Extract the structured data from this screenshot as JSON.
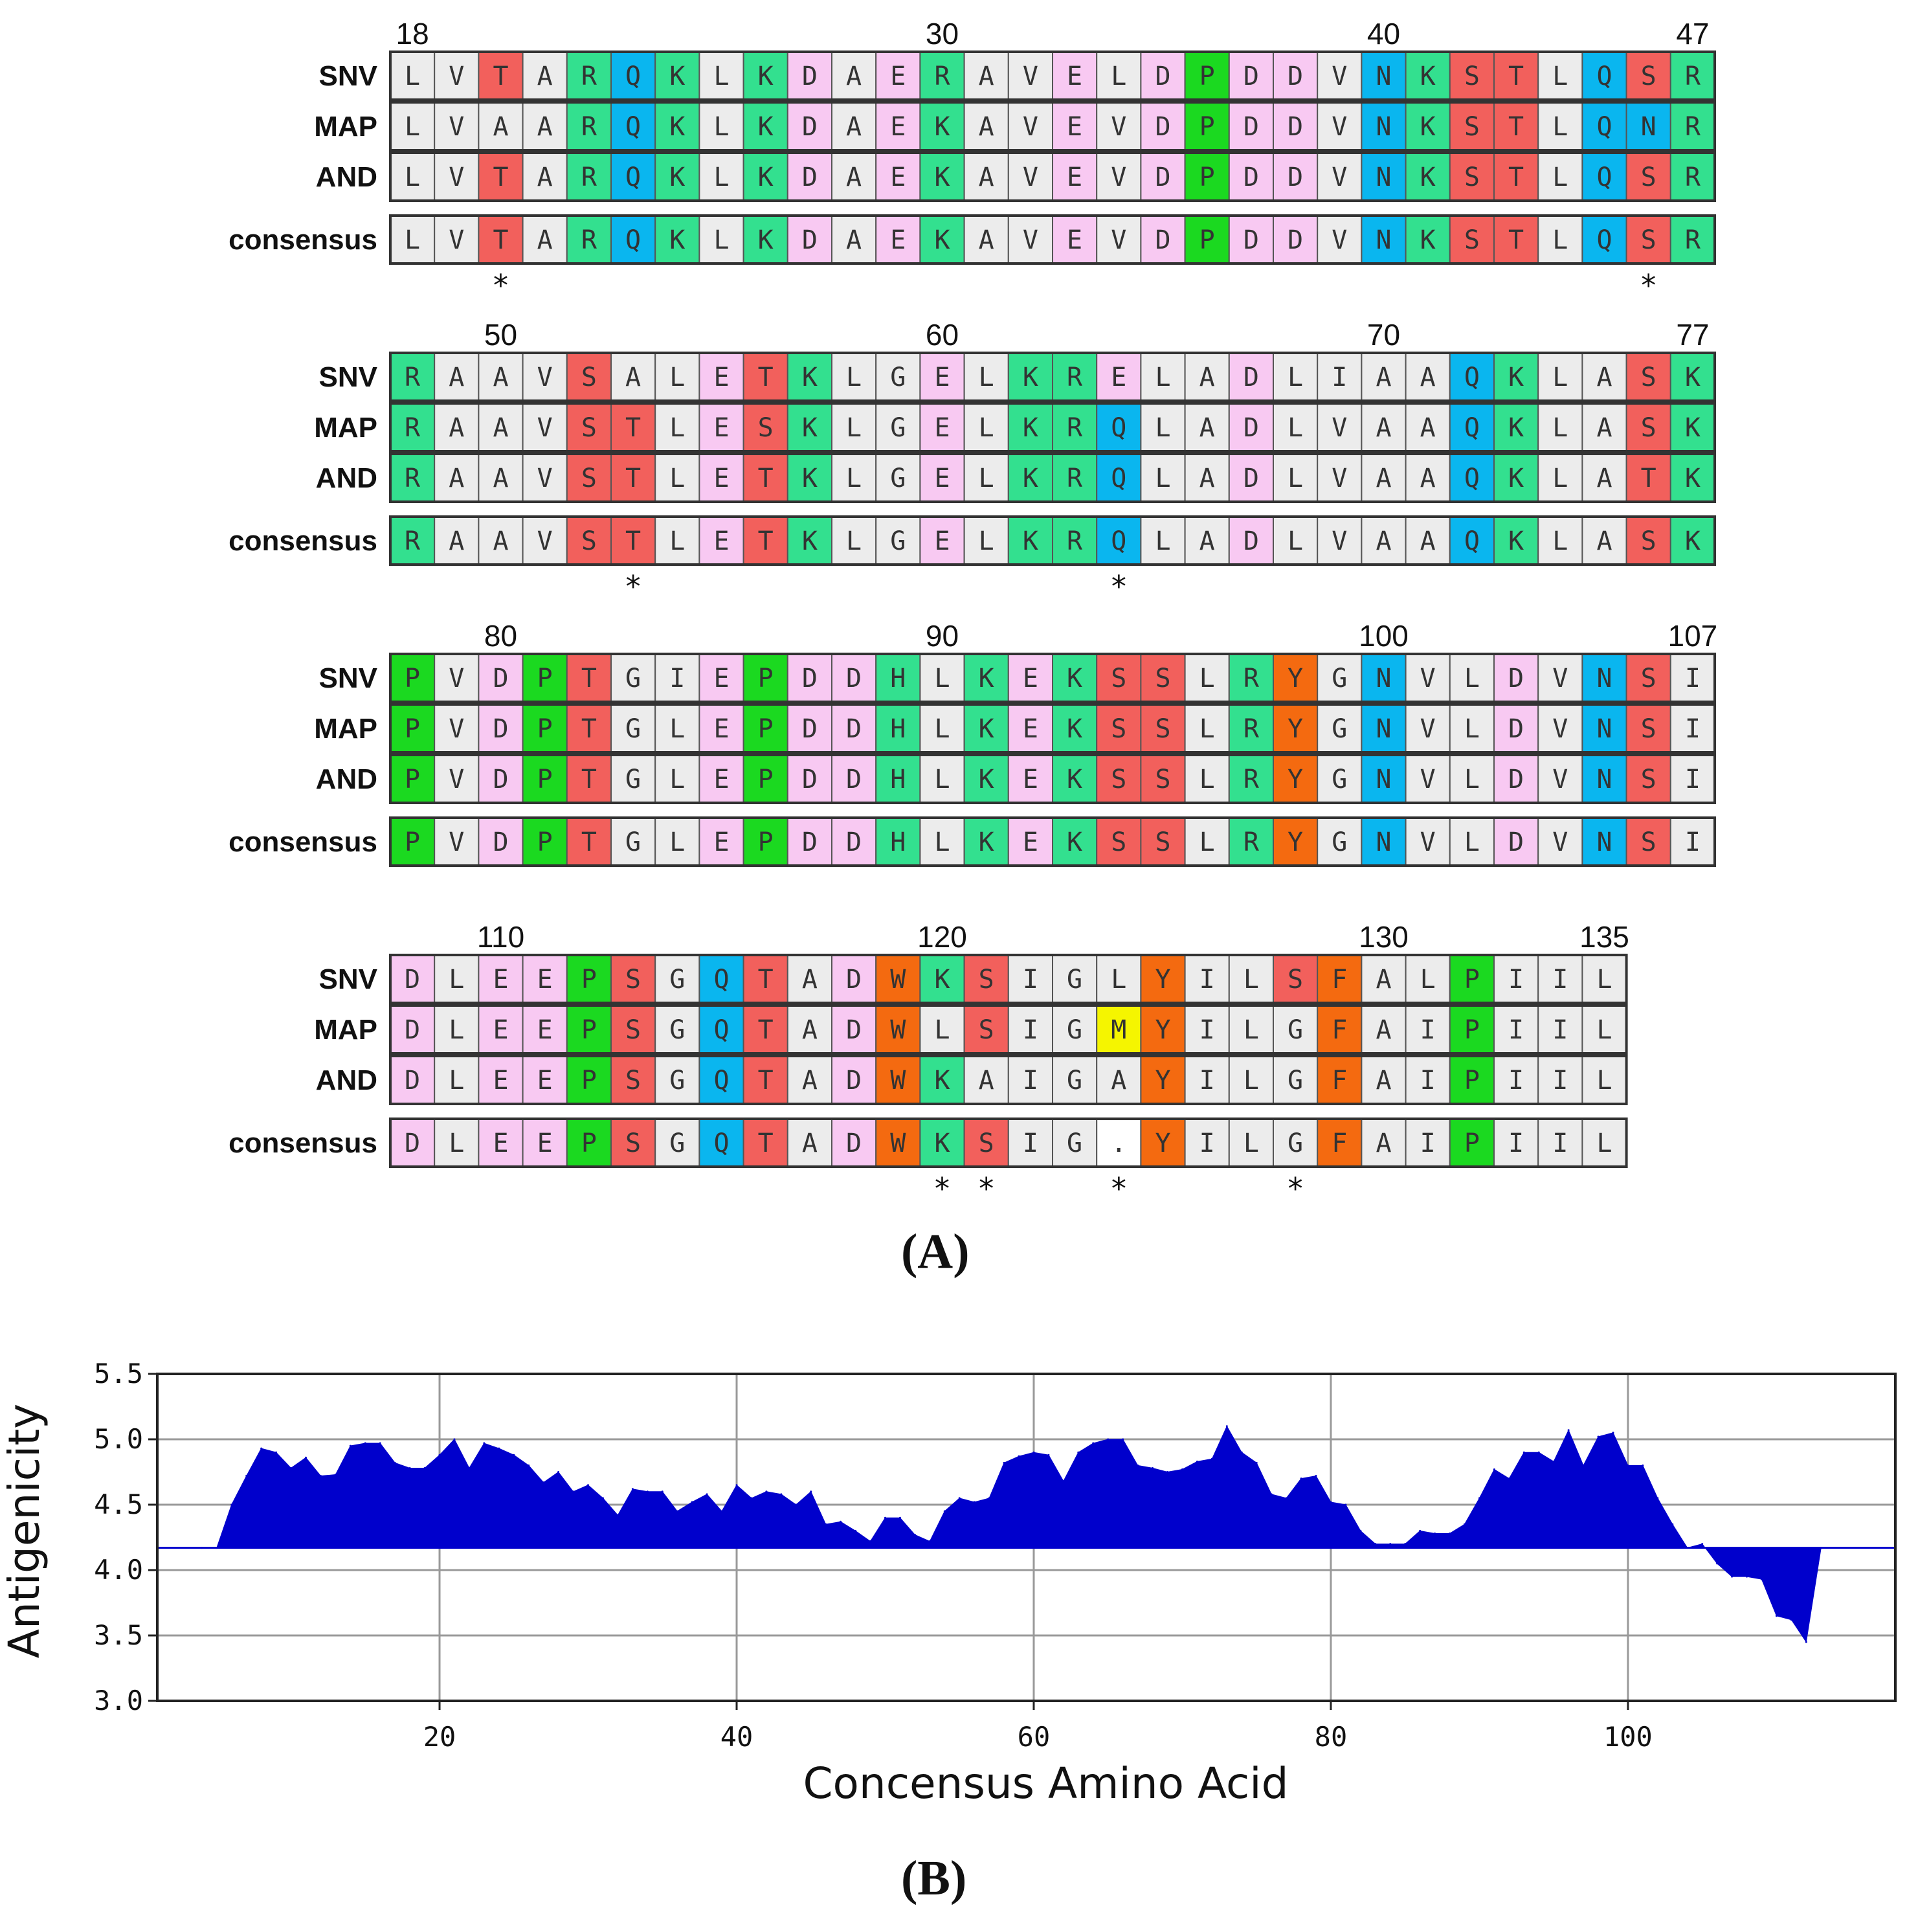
{
  "panel_a": {
    "label": "(A)",
    "rows_labels": [
      "SNV",
      "MAP",
      "AND",
      "consensus"
    ],
    "colors": {
      "gray": "#ececec",
      "pink": "#f8c9f2",
      "teal": "#33e08f",
      "red": "#f2605c",
      "blue": "#0ab6ef",
      "green": "#1bd920",
      "orange": "#f46a10",
      "yellow": "#f5f500",
      "white": "#ffffff",
      "border": "#333333"
    },
    "blocks": [
      {
        "numbers": [
          {
            "col": 0,
            "label": "18"
          },
          {
            "col": 12,
            "label": "30"
          },
          {
            "col": 22,
            "label": "40"
          },
          {
            "col": 29,
            "label": "47"
          }
        ],
        "SNV": "LVTARQKLKDAERAVELDPDDVNKSTLQSR",
        "MAP": "LVAARQKLKDAEKAVEVDPDDVNKSTLQNR",
        "AND": "LVTARQKLKDAEKAVEVDPDDVNKSTLQSR",
        "consensus": "LVTARQKLKDAEKAVEVDPDDVNKSTLQSR",
        "stars": [
          2,
          28
        ]
      },
      {
        "numbers": [
          {
            "col": 2,
            "label": "50"
          },
          {
            "col": 12,
            "label": "60"
          },
          {
            "col": 22,
            "label": "70"
          },
          {
            "col": 29,
            "label": "77"
          }
        ],
        "SNV": "RAAVSALETKLGELKRELADLIAAQKLASK",
        "MAP": "RAAVSTLESKLGELKRQLADLVAAQKLASK",
        "AND": "RAAVSTLETKLGELKRQLADLVAAQKLATK",
        "consensus": "RAAVSTLETKLGELKRQLADLVAAQKLASK",
        "stars": [
          5,
          16
        ]
      },
      {
        "numbers": [
          {
            "col": 2,
            "label": "80"
          },
          {
            "col": 12,
            "label": "90"
          },
          {
            "col": 22,
            "label": "100"
          },
          {
            "col": 29,
            "label": "107"
          }
        ],
        "SNV": "PVDPTGIEPDDHLKEKSSLRYGNVLDVNSI",
        "MAP": "PVDPTGLEPDDHLKEKSSLRYGNVLDVNSI",
        "AND": "PVDPTGLEPDDHLKEKSSLRYGNVLDVNSI",
        "consensus": "PVDPTGLEPDDHLKEKSSLRYGNVLDVNSI",
        "stars": []
      },
      {
        "numbers": [
          {
            "col": 2,
            "label": "110"
          },
          {
            "col": 12,
            "label": "120"
          },
          {
            "col": 22,
            "label": "130"
          },
          {
            "col": 27,
            "label": "135"
          }
        ],
        "SNV": "DLEEPSGQTADWKSIGLYILSFALPIIL",
        "MAP": "DLEEPSGQTADWLSIGMYILGFAIPIIL",
        "AND": "DLEEPSGQTADWKAIGAYILGFAIPIIL",
        "consensus": "DLEEPSGQTADWKSIG.YILGFAIPIIL",
        "stars": [
          12,
          13,
          16,
          20
        ]
      }
    ],
    "star_char": "*"
  },
  "panel_b": {
    "label": "(B)"
  },
  "chart_data": {
    "type": "area",
    "title": "",
    "xlabel": "Concensus Amino Acid",
    "ylabel": "Antigenicity",
    "xlim": [
      1,
      118
    ],
    "ylim": [
      3.0,
      5.5
    ],
    "baseline": 4.17,
    "xticks": [
      20,
      40,
      60,
      80,
      100
    ],
    "yticks": [
      "3.0",
      "3.5",
      "4.0",
      "4.5",
      "5.0",
      "5.5"
    ],
    "grid": true,
    "fill_color": "#0000cc",
    "x": [
      1,
      4,
      5,
      6,
      7,
      8,
      9,
      10,
      11,
      12,
      13,
      14,
      15,
      16,
      17,
      18,
      19,
      20,
      21,
      22,
      23,
      24,
      25,
      26,
      27,
      28,
      29,
      30,
      31,
      32,
      33,
      34,
      35,
      36,
      37,
      38,
      39,
      40,
      41,
      42,
      43,
      44,
      45,
      46,
      47,
      48,
      49,
      50,
      51,
      52,
      53,
      54,
      55,
      56,
      57,
      58,
      59,
      60,
      61,
      62,
      63,
      64,
      65,
      66,
      67,
      68,
      69,
      70,
      71,
      72,
      73,
      74,
      75,
      76,
      77,
      78,
      79,
      80,
      81,
      82,
      83,
      84,
      85,
      86,
      87,
      88,
      89,
      90,
      91,
      92,
      93,
      94,
      95,
      96,
      97,
      98,
      99,
      100,
      101,
      102,
      103,
      104,
      105,
      106,
      107,
      108,
      109,
      110,
      111,
      112,
      113,
      118
    ],
    "y": [
      4.17,
      4.17,
      4.17,
      4.5,
      4.72,
      4.93,
      4.9,
      4.78,
      4.86,
      4.72,
      4.73,
      4.95,
      4.97,
      4.97,
      4.82,
      4.78,
      4.78,
      4.88,
      5.0,
      4.78,
      4.97,
      4.93,
      4.88,
      4.8,
      4.67,
      4.75,
      4.6,
      4.65,
      4.55,
      4.42,
      4.62,
      4.6,
      4.6,
      4.45,
      4.52,
      4.58,
      4.45,
      4.65,
      4.55,
      4.6,
      4.58,
      4.5,
      4.6,
      4.35,
      4.37,
      4.3,
      4.22,
      4.4,
      4.4,
      4.27,
      4.22,
      4.45,
      4.55,
      4.52,
      4.55,
      4.82,
      4.87,
      4.9,
      4.88,
      4.68,
      4.9,
      4.97,
      5.0,
      5.0,
      4.8,
      4.78,
      4.75,
      4.77,
      4.83,
      4.85,
      5.1,
      4.9,
      4.82,
      4.58,
      4.55,
      4.7,
      4.72,
      4.52,
      4.5,
      4.3,
      4.2,
      4.2,
      4.2,
      4.3,
      4.28,
      4.28,
      4.35,
      4.55,
      4.77,
      4.7,
      4.9,
      4.9,
      4.83,
      5.07,
      4.8,
      5.02,
      5.05,
      4.8,
      4.8,
      4.55,
      4.35,
      4.17,
      4.2,
      4.05,
      3.95,
      3.95,
      3.93,
      3.65,
      3.62,
      3.45,
      4.17,
      4.17
    ]
  }
}
